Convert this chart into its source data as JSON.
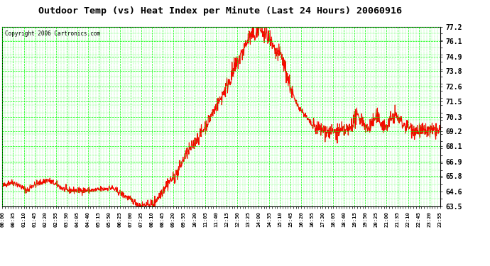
{
  "title": "Outdoor Temp (vs) Heat Index per Minute (Last 24 Hours) 20060916",
  "copyright": "Copyright 2006 Cartronics.com",
  "bg_color": "#ffffff",
  "plot_bg_color": "#ffffff",
  "grid_color": "#00ff00",
  "line_color": "#ff0000",
  "title_color": "#000000",
  "ylabel_color": "#000000",
  "xlabel_color": "#000000",
  "ymin": 63.5,
  "ymax": 77.2,
  "yticks": [
    63.5,
    64.6,
    65.8,
    66.9,
    68.1,
    69.2,
    70.3,
    71.5,
    72.6,
    73.8,
    74.9,
    76.1,
    77.2
  ],
  "xtick_labels": [
    "00:00",
    "00:35",
    "01:10",
    "01:45",
    "02:20",
    "02:55",
    "03:30",
    "04:05",
    "04:40",
    "05:15",
    "05:50",
    "06:25",
    "07:00",
    "07:35",
    "08:10",
    "08:45",
    "09:20",
    "09:55",
    "10:30",
    "11:05",
    "11:40",
    "12:15",
    "12:50",
    "13:25",
    "14:00",
    "14:35",
    "15:10",
    "15:45",
    "16:20",
    "16:55",
    "17:30",
    "18:05",
    "18:40",
    "19:15",
    "19:50",
    "20:25",
    "21:00",
    "21:35",
    "22:10",
    "22:45",
    "23:20",
    "23:55"
  ]
}
